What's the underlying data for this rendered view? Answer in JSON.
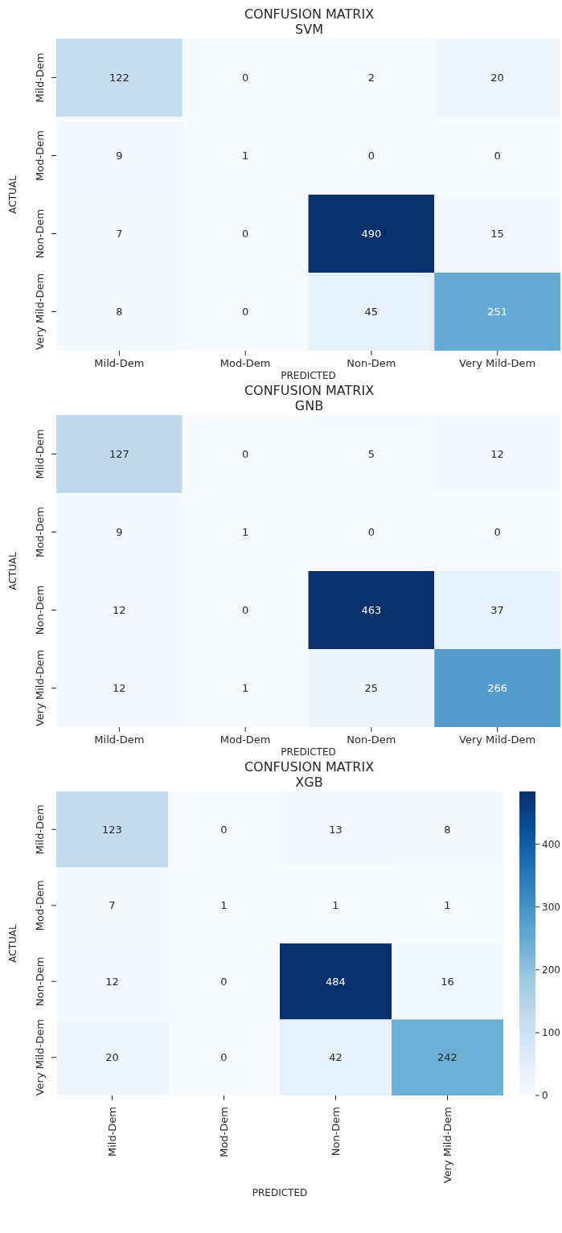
{
  "chart_data": [
    {
      "type": "heatmap",
      "title": "CONFUSION MATRIX",
      "subtitle": "SVM",
      "xlabel": "PREDICTED",
      "ylabel": "ACTUAL",
      "categories": [
        "Mild-Dem",
        "Mod-Dem",
        "Non-Dem",
        "Very Mild-Dem"
      ],
      "y_categories": [
        "Mild-Dem",
        "Mod-Dem",
        "Non-Dem",
        "Very Mild-Dem"
      ],
      "data_labels": true,
      "cells": [
        [
          122,
          0,
          2,
          20
        ],
        [
          9,
          1,
          0,
          0
        ],
        [
          7,
          0,
          490,
          15
        ],
        [
          8,
          0,
          45,
          251
        ]
      ]
    },
    {
      "type": "heatmap",
      "title": "CONFUSION MATRIX",
      "subtitle": "GNB",
      "xlabel": "PREDICTED",
      "ylabel": "ACTUAL",
      "categories": [
        "Mild-Dem",
        "Mod-Dem",
        "Non-Dem",
        "Very Mild-Dem"
      ],
      "y_categories": [
        "Mild-Dem",
        "Mod-Dem",
        "Non-Dem",
        "Very Mild-Dem"
      ],
      "data_labels": true,
      "cells": [
        [
          127,
          0,
          5,
          12
        ],
        [
          9,
          1,
          0,
          0
        ],
        [
          12,
          0,
          463,
          37
        ],
        [
          12,
          1,
          25,
          266
        ]
      ]
    },
    {
      "type": "heatmap",
      "title": "CONFUSION MATRIX",
      "subtitle": "XGB",
      "xlabel": "PREDICTED",
      "ylabel": "ACTUAL",
      "categories": [
        "Mild-Dem",
        "Mod-Dem",
        "Non-Dem",
        "Very Mild-Dem"
      ],
      "y_categories": [
        "Mild-Dem",
        "Mod-Dem",
        "Non-Dem",
        "Very Mild-Dem"
      ],
      "data_labels": true,
      "cells": [
        [
          123,
          0,
          13,
          8
        ],
        [
          7,
          1,
          1,
          1
        ],
        [
          12,
          0,
          484,
          16
        ],
        [
          20,
          0,
          42,
          242
        ]
      ],
      "clim": [
        0,
        484
      ],
      "cticks": [
        0,
        100,
        200,
        300,
        400
      ]
    }
  ]
}
